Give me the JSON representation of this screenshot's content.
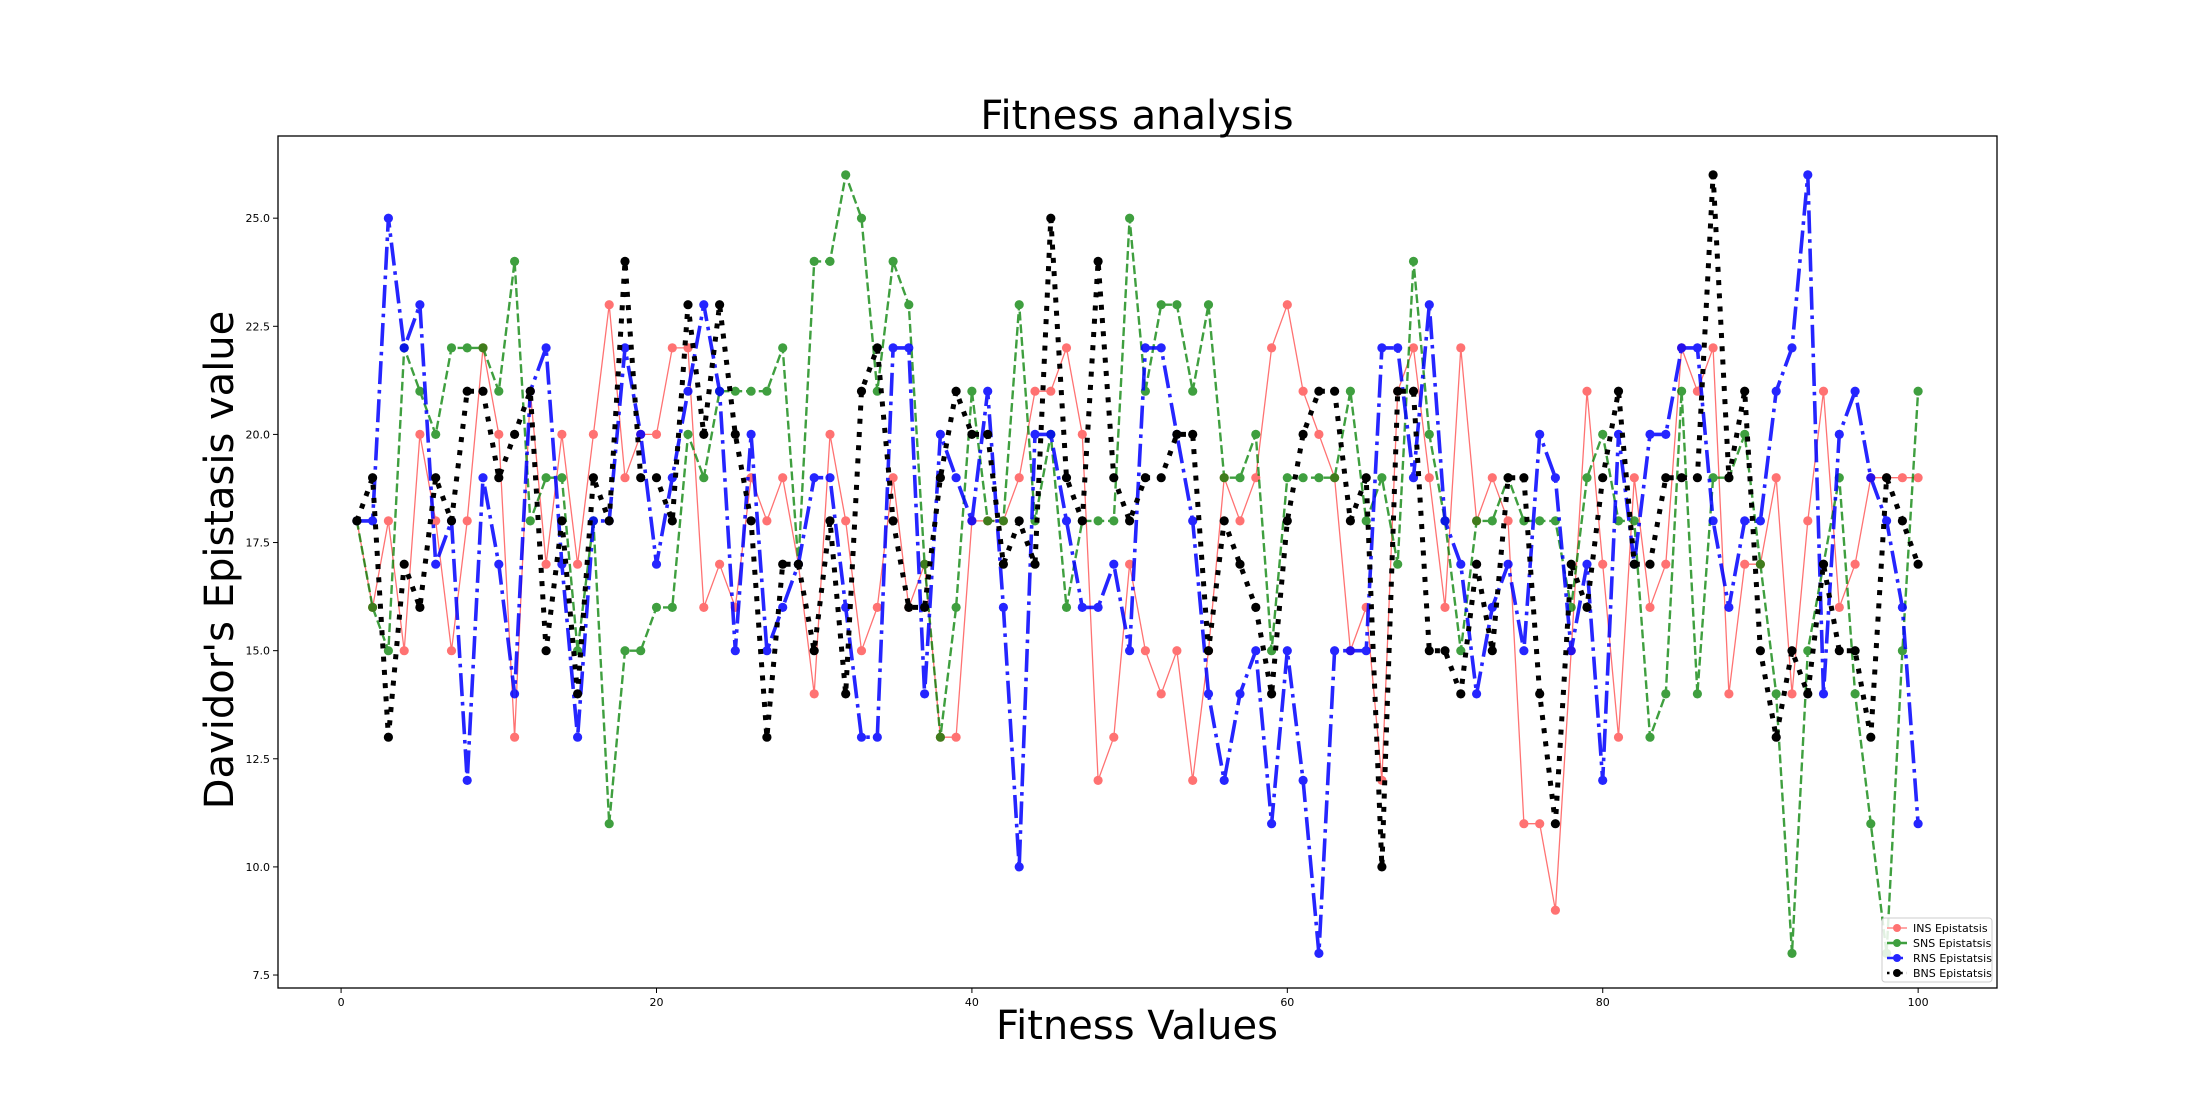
{
  "chart_data": {
    "type": "line",
    "title": "Fitness analysis",
    "xlabel": "Fitness Values",
    "ylabel": "Davidor's Epistasis value",
    "xlim": [
      -4,
      105
    ],
    "ylim": [
      7.2,
      26.9
    ],
    "xticks": [
      "0",
      "20",
      "40",
      "60",
      "80",
      "100"
    ],
    "yticks": [
      "7.5",
      "10.0",
      "12.5",
      "15.0",
      "17.5",
      "20.0",
      "22.5",
      "25.0"
    ],
    "grid": false,
    "legend_position": "lower-right",
    "x": [
      1,
      2,
      3,
      4,
      5,
      6,
      7,
      8,
      9,
      10,
      11,
      12,
      13,
      14,
      15,
      16,
      17,
      18,
      19,
      20,
      21,
      22,
      23,
      24,
      25,
      26,
      27,
      28,
      29,
      30,
      31,
      32,
      33,
      34,
      35,
      36,
      37,
      38,
      39,
      40,
      41,
      42,
      43,
      44,
      45,
      46,
      47,
      48,
      49,
      50,
      51,
      52,
      53,
      54,
      55,
      56,
      57,
      58,
      59,
      60,
      61,
      62,
      63,
      64,
      65,
      66,
      67,
      68,
      69,
      70,
      71,
      72,
      73,
      74,
      75,
      76,
      77,
      78,
      79,
      80,
      81,
      82,
      83,
      84,
      85,
      86,
      87,
      88,
      89,
      90,
      91,
      92,
      93,
      94,
      95,
      96,
      97,
      98,
      99,
      100
    ],
    "series": [
      {
        "name": "INS Epistatsis",
        "color": "#ff0000",
        "opacity": 0.55,
        "linestyle": "solid",
        "linewidth": 1.3,
        "values": [
          18,
          16,
          18,
          15,
          20,
          18,
          15,
          18,
          22,
          20,
          13,
          21,
          17,
          20,
          17,
          20,
          23,
          19,
          20,
          20,
          22,
          22,
          16,
          17,
          16,
          19,
          18,
          19,
          17,
          14,
          20,
          18,
          15,
          16,
          19,
          16,
          17,
          13,
          13,
          18,
          18,
          18,
          19,
          21,
          21,
          22,
          20,
          12,
          13,
          17,
          15,
          14,
          15,
          12,
          15,
          19,
          18,
          19,
          22,
          23,
          21,
          20,
          19,
          15,
          16,
          12,
          21,
          22,
          19,
          16,
          22,
          18,
          19,
          18,
          11,
          11,
          9,
          15,
          21,
          17,
          13,
          19,
          16,
          17,
          22,
          21,
          22,
          14,
          17,
          17,
          19,
          14,
          18,
          21,
          16,
          17,
          19,
          19,
          19,
          19
        ]
      },
      {
        "name": "SNS Epistatsis",
        "color": "#008000",
        "opacity": 0.75,
        "linestyle": "dashed",
        "linewidth": 2.4,
        "values": [
          18,
          16,
          15,
          22,
          21,
          20,
          22,
          22,
          22,
          21,
          24,
          18,
          19,
          19,
          15,
          18,
          11,
          15,
          15,
          16,
          16,
          20,
          19,
          21,
          21,
          21,
          21,
          22,
          17,
          24,
          24,
          26,
          25,
          21,
          24,
          23,
          17,
          13,
          16,
          21,
          18,
          18,
          23,
          18,
          20,
          16,
          18,
          18,
          18,
          25,
          21,
          23,
          23,
          21,
          23,
          19,
          19,
          20,
          15,
          19,
          19,
          19,
          19,
          21,
          18,
          19,
          17,
          24,
          20,
          18,
          15,
          18,
          18,
          19,
          18,
          18,
          18,
          16,
          19,
          20,
          18,
          18,
          13,
          14,
          21,
          14,
          19,
          19,
          20,
          17,
          14,
          8,
          15,
          17,
          19,
          14,
          11,
          8,
          15,
          21
        ]
      },
      {
        "name": "RNS Epistatsis",
        "color": "#0000ff",
        "opacity": 0.85,
        "linestyle": "dashdot",
        "linewidth": 3.6,
        "values": [
          18,
          18,
          25,
          22,
          23,
          17,
          18,
          12,
          19,
          17,
          14,
          21,
          22,
          17,
          13,
          18,
          18,
          22,
          20,
          17,
          19,
          21,
          23,
          21,
          15,
          20,
          15,
          16,
          17,
          19,
          19,
          16,
          13,
          13,
          22,
          22,
          14,
          20,
          19,
          18,
          21,
          16,
          10,
          20,
          20,
          18,
          16,
          16,
          17,
          15,
          22,
          22,
          20,
          18,
          14,
          12,
          14,
          15,
          11,
          15,
          12,
          8,
          15,
          15,
          15,
          22,
          22,
          19,
          23,
          18,
          17,
          14,
          16,
          17,
          15,
          20,
          19,
          15,
          17,
          12,
          20,
          17,
          20,
          20,
          22,
          22,
          18,
          16,
          18,
          18,
          21,
          22,
          26,
          14,
          20,
          21,
          19,
          18,
          16,
          11
        ]
      },
      {
        "name": "BNS Epistatsis",
        "color": "#000000",
        "opacity": 1,
        "linestyle": "dotted",
        "linewidth": 5,
        "values": [
          18,
          19,
          13,
          17,
          16,
          19,
          18,
          21,
          21,
          19,
          20,
          21,
          15,
          18,
          14,
          19,
          18,
          24,
          19,
          19,
          18,
          23,
          20,
          23,
          20,
          18,
          13,
          17,
          17,
          15,
          18,
          14,
          21,
          22,
          18,
          16,
          16,
          19,
          21,
          20,
          20,
          17,
          18,
          17,
          25,
          19,
          18,
          24,
          19,
          18,
          19,
          19,
          20,
          20,
          15,
          18,
          17,
          16,
          14,
          18,
          20,
          21,
          21,
          18,
          19,
          10,
          21,
          21,
          15,
          15,
          14,
          17,
          15,
          19,
          19,
          14,
          11,
          17,
          16,
          19,
          21,
          17,
          17,
          19,
          19,
          19,
          26,
          19,
          21,
          15,
          13,
          15,
          14,
          17,
          15,
          15,
          13,
          19,
          18,
          17
        ]
      }
    ]
  }
}
